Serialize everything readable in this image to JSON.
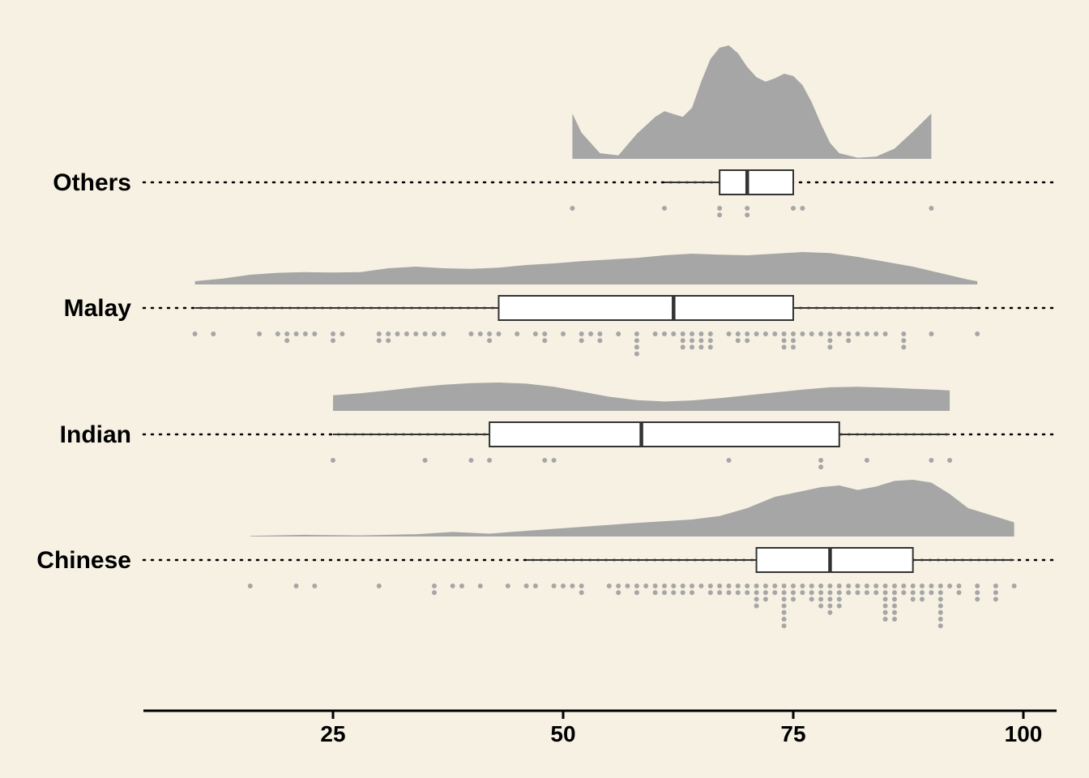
{
  "chart_data": {
    "type": "raincloud",
    "title": "",
    "xlabel": "",
    "ylabel": "",
    "xlim": [
      5,
      102.5
    ],
    "xticks": [
      25,
      50,
      75,
      100
    ],
    "grid": false,
    "legend": "none",
    "colors": {
      "background": "#F6F1E3",
      "density": "#A6A6A6",
      "dots": "#A6A6A6",
      "box_fill": "#FFFFFF",
      "box_line": "#333333",
      "axis": "#000000"
    },
    "categories": [
      "Others",
      "Malay",
      "Indian",
      "Chinese"
    ],
    "groups": [
      {
        "name": "Others",
        "box": {
          "min": 61,
          "q1": 67,
          "median": 70,
          "q3": 75,
          "max": 75
        },
        "whisker_extent": [
          61,
          75
        ],
        "density_range": [
          51,
          90
        ],
        "density": [
          [
            51,
            0.4
          ],
          [
            52,
            0.23
          ],
          [
            54,
            0.05
          ],
          [
            56,
            0.03
          ],
          [
            58,
            0.22
          ],
          [
            60,
            0.37
          ],
          [
            61,
            0.42
          ],
          [
            63,
            0.37
          ],
          [
            64,
            0.45
          ],
          [
            65,
            0.68
          ],
          [
            66,
            0.88
          ],
          [
            67,
            0.98
          ],
          [
            68,
            1.0
          ],
          [
            69,
            0.93
          ],
          [
            70,
            0.81
          ],
          [
            71,
            0.72
          ],
          [
            72,
            0.68
          ],
          [
            73,
            0.71
          ],
          [
            74,
            0.75
          ],
          [
            75,
            0.73
          ],
          [
            76,
            0.65
          ],
          [
            77,
            0.5
          ],
          [
            78,
            0.31
          ],
          [
            79,
            0.14
          ],
          [
            80,
            0.05
          ],
          [
            82,
            0.01
          ],
          [
            84,
            0.02
          ],
          [
            86,
            0.09
          ],
          [
            88,
            0.24
          ],
          [
            90,
            0.4
          ]
        ],
        "dots": [
          51,
          61,
          67,
          67,
          70,
          70,
          75,
          76,
          90
        ]
      },
      {
        "name": "Malay",
        "box": {
          "min": 10,
          "q1": 43,
          "median": 62,
          "q3": 75,
          "max": 95
        },
        "whisker_extent": [
          10,
          95
        ],
        "density_range": [
          10,
          95
        ],
        "density": [
          [
            10,
            0.1
          ],
          [
            13,
            0.18
          ],
          [
            16,
            0.3
          ],
          [
            19,
            0.36
          ],
          [
            22,
            0.38
          ],
          [
            25,
            0.37
          ],
          [
            28,
            0.38
          ],
          [
            31,
            0.5
          ],
          [
            34,
            0.55
          ],
          [
            37,
            0.5
          ],
          [
            40,
            0.48
          ],
          [
            43,
            0.52
          ],
          [
            46,
            0.6
          ],
          [
            49,
            0.65
          ],
          [
            52,
            0.72
          ],
          [
            55,
            0.77
          ],
          [
            58,
            0.82
          ],
          [
            61,
            0.9
          ],
          [
            64,
            0.95
          ],
          [
            67,
            0.92
          ],
          [
            70,
            0.9
          ],
          [
            73,
            0.95
          ],
          [
            76,
            1.0
          ],
          [
            79,
            0.97
          ],
          [
            82,
            0.85
          ],
          [
            85,
            0.7
          ],
          [
            88,
            0.55
          ],
          [
            91,
            0.35
          ],
          [
            94,
            0.15
          ],
          [
            95,
            0.1
          ]
        ],
        "dots": [
          10,
          12,
          17,
          19,
          20,
          20,
          21,
          22,
          23,
          25,
          25,
          26,
          30,
          30,
          31,
          31,
          32,
          33,
          34,
          35,
          36,
          37,
          40,
          41,
          42,
          42,
          43,
          45,
          47,
          48,
          48,
          50,
          52,
          52,
          53,
          54,
          54,
          56,
          58,
          58,
          58,
          58,
          60,
          61,
          62,
          63,
          63,
          63,
          64,
          64,
          64,
          65,
          65,
          65,
          66,
          66,
          66,
          68,
          69,
          69,
          70,
          70,
          71,
          72,
          73,
          74,
          74,
          74,
          75,
          75,
          75,
          76,
          77,
          78,
          79,
          79,
          79,
          80,
          81,
          81,
          82,
          83,
          84,
          85,
          87,
          87,
          87,
          90,
          95
        ]
      },
      {
        "name": "Indian",
        "box": {
          "min": 25,
          "q1": 42,
          "median": 58.5,
          "q3": 80,
          "max": 92
        },
        "whisker_extent": [
          25,
          92
        ],
        "density_range": [
          25,
          92
        ],
        "density": [
          [
            25,
            0.55
          ],
          [
            28,
            0.62
          ],
          [
            31,
            0.72
          ],
          [
            34,
            0.83
          ],
          [
            37,
            0.92
          ],
          [
            40,
            0.98
          ],
          [
            43,
            1.0
          ],
          [
            46,
            0.96
          ],
          [
            49,
            0.85
          ],
          [
            52,
            0.68
          ],
          [
            55,
            0.5
          ],
          [
            58,
            0.38
          ],
          [
            61,
            0.33
          ],
          [
            64,
            0.37
          ],
          [
            67,
            0.45
          ],
          [
            70,
            0.55
          ],
          [
            73,
            0.65
          ],
          [
            76,
            0.75
          ],
          [
            79,
            0.83
          ],
          [
            82,
            0.85
          ],
          [
            85,
            0.82
          ],
          [
            88,
            0.78
          ],
          [
            91,
            0.74
          ],
          [
            92,
            0.72
          ]
        ],
        "dots": [
          25,
          35,
          40,
          42,
          48,
          49,
          68,
          78,
          78,
          83,
          90,
          92
        ]
      },
      {
        "name": "Chinese",
        "box": {
          "min": 46,
          "q1": 71,
          "median": 79,
          "q3": 88,
          "max": 99
        },
        "whisker_extent": [
          46,
          99
        ],
        "density_range": [
          16,
          99
        ],
        "density": [
          [
            16,
            0.01
          ],
          [
            22,
            0.03
          ],
          [
            28,
            0.02
          ],
          [
            34,
            0.04
          ],
          [
            38,
            0.08
          ],
          [
            42,
            0.05
          ],
          [
            46,
            0.1
          ],
          [
            52,
            0.17
          ],
          [
            58,
            0.24
          ],
          [
            64,
            0.3
          ],
          [
            67,
            0.36
          ],
          [
            70,
            0.5
          ],
          [
            73,
            0.7
          ],
          [
            76,
            0.8
          ],
          [
            78,
            0.87
          ],
          [
            80,
            0.9
          ],
          [
            82,
            0.82
          ],
          [
            84,
            0.88
          ],
          [
            86,
            0.98
          ],
          [
            88,
            1.0
          ],
          [
            90,
            0.95
          ],
          [
            92,
            0.75
          ],
          [
            94,
            0.5
          ],
          [
            96,
            0.4
          ],
          [
            99,
            0.25
          ]
        ],
        "dots": [
          16,
          21,
          23,
          30,
          36,
          36,
          38,
          39,
          41,
          44,
          46,
          47,
          49,
          50,
          51,
          52,
          52,
          55,
          56,
          56,
          57,
          58,
          58,
          59,
          60,
          60,
          61,
          61,
          62,
          62,
          63,
          63,
          64,
          64,
          65,
          66,
          66,
          67,
          67,
          68,
          68,
          69,
          69,
          70,
          70,
          71,
          71,
          71,
          71,
          72,
          72,
          72,
          73,
          73,
          74,
          74,
          74,
          74,
          74,
          74,
          74,
          75,
          75,
          75,
          76,
          76,
          77,
          77,
          77,
          78,
          78,
          78,
          78,
          79,
          79,
          79,
          79,
          79,
          80,
          80,
          80,
          80,
          81,
          81,
          82,
          82,
          83,
          83,
          84,
          84,
          85,
          85,
          85,
          85,
          85,
          85,
          86,
          86,
          86,
          86,
          86,
          86,
          87,
          87,
          88,
          88,
          88,
          89,
          89,
          89,
          90,
          90,
          91,
          91,
          91,
          91,
          91,
          91,
          91,
          92,
          93,
          93,
          95,
          95,
          95,
          97,
          97,
          97,
          99
        ]
      }
    ]
  }
}
